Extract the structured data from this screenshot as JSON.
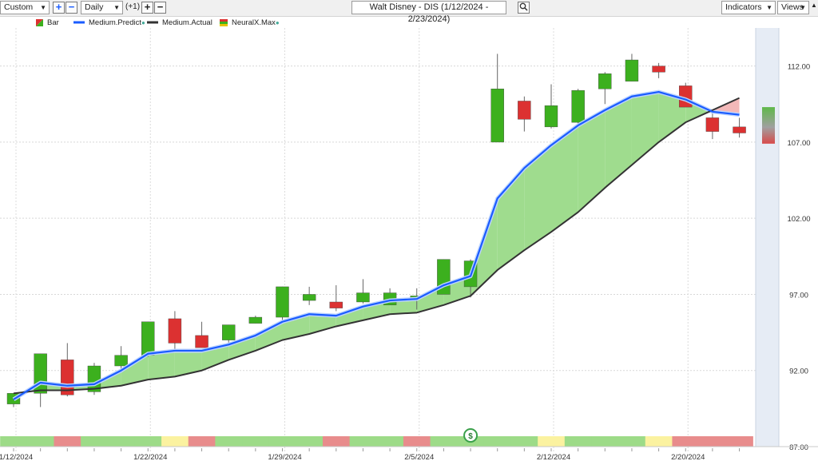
{
  "toolbar": {
    "range_select": "Custom",
    "interval_select": "Daily",
    "offset_label": "(+1)",
    "title": "Walt Disney - DIS (1/12/2024 - 2/23/2024)",
    "indicators_label": "Indicators",
    "views_label": "Views",
    "icons": [
      "plus-icon",
      "minus-icon",
      "search-icon",
      "chevron-down-icon"
    ]
  },
  "legend": {
    "bar": "Bar",
    "predict": "Medium.Predict",
    "actual": "Medium.Actual",
    "neuralx": "NeuralX.Max"
  },
  "colors": {
    "up": "#3cb01e",
    "down": "#dc3131",
    "predict_line": "#1a5cff",
    "actual_line": "#333333",
    "fill_above": "#9fdc8e",
    "fill_below": "#f3b8b8",
    "strip_green": "#9ddb88",
    "strip_red": "#e88c8c",
    "strip_yellow": "#fbf2a0",
    "forecast_band": "#e6ecf5"
  },
  "chart_data": {
    "type": "candlestick",
    "y_ticks": [
      "87.00",
      "92.00",
      "97.00",
      "102.00",
      "107.00",
      "112.00"
    ],
    "ylim": [
      87,
      114.5
    ],
    "x_ticks": [
      {
        "label": "1/12/2024",
        "index": 0
      },
      {
        "label": "1/22/2024",
        "index": 5
      },
      {
        "label": "1/29/2024",
        "index": 10
      },
      {
        "label": "2/5/2024",
        "index": 15
      },
      {
        "label": "2/12/2024",
        "index": 20
      },
      {
        "label": "2/20/2024",
        "index": 25
      }
    ],
    "grid": true,
    "candles": [
      {
        "o": 89.8,
        "h": 90.5,
        "l": 89.6,
        "c": 90.5
      },
      {
        "o": 90.5,
        "h": 93.1,
        "l": 89.6,
        "c": 93.1
      },
      {
        "o": 92.7,
        "h": 93.8,
        "l": 90.3,
        "c": 90.4
      },
      {
        "o": 90.6,
        "h": 92.5,
        "l": 90.4,
        "c": 92.3
      },
      {
        "o": 92.3,
        "h": 93.6,
        "l": 92.1,
        "c": 93.0
      },
      {
        "o": 93.0,
        "h": 95.2,
        "l": 92.9,
        "c": 95.2
      },
      {
        "o": 95.4,
        "h": 95.9,
        "l": 93.4,
        "c": 93.8
      },
      {
        "o": 94.3,
        "h": 95.2,
        "l": 93.5,
        "c": 93.5
      },
      {
        "o": 94.0,
        "h": 95.0,
        "l": 93.8,
        "c": 95.0
      },
      {
        "o": 95.1,
        "h": 95.6,
        "l": 95.1,
        "c": 95.5
      },
      {
        "o": 95.5,
        "h": 97.5,
        "l": 95.1,
        "c": 97.5
      },
      {
        "o": 96.6,
        "h": 97.5,
        "l": 96.3,
        "c": 97.0
      },
      {
        "o": 96.5,
        "h": 97.6,
        "l": 95.9,
        "c": 96.1
      },
      {
        "o": 96.5,
        "h": 98.0,
        "l": 96.4,
        "c": 97.1
      },
      {
        "o": 96.3,
        "h": 97.4,
        "l": 96.3,
        "c": 97.1
      },
      {
        "o": 96.8,
        "h": 97.4,
        "l": 96.0,
        "c": 96.9
      },
      {
        "o": 97.0,
        "h": 99.3,
        "l": 97.0,
        "c": 99.3
      },
      {
        "o": 97.5,
        "h": 99.3,
        "l": 96.8,
        "c": 99.2
      },
      {
        "o": 107.0,
        "h": 112.8,
        "l": 107.0,
        "c": 110.5
      },
      {
        "o": 109.7,
        "h": 110.0,
        "l": 107.7,
        "c": 108.5
      },
      {
        "o": 108.0,
        "h": 110.8,
        "l": 107.9,
        "c": 109.4
      },
      {
        "o": 108.3,
        "h": 110.5,
        "l": 108.0,
        "c": 110.4
      },
      {
        "o": 110.5,
        "h": 111.6,
        "l": 109.5,
        "c": 111.5
      },
      {
        "o": 111.0,
        "h": 112.8,
        "l": 111.0,
        "c": 112.4
      },
      {
        "o": 112.0,
        "h": 112.2,
        "l": 111.2,
        "c": 111.6
      },
      {
        "o": 110.7,
        "h": 110.9,
        "l": 109.3,
        "c": 109.3
      },
      {
        "o": 108.6,
        "h": 108.9,
        "l": 107.2,
        "c": 107.7
      },
      {
        "o": 108.0,
        "h": 108.6,
        "l": 107.3,
        "c": 107.6
      }
    ],
    "series": [
      {
        "name": "Medium.Predict",
        "values": [
          90.1,
          91.2,
          91.0,
          91.1,
          92.0,
          93.1,
          93.3,
          93.3,
          93.7,
          94.3,
          95.2,
          95.7,
          95.6,
          96.2,
          96.6,
          96.7,
          97.6,
          98.2,
          103.3,
          105.3,
          106.8,
          108.1,
          109.1,
          110.0,
          110.3,
          109.8,
          109.0,
          108.8
        ]
      },
      {
        "name": "Medium.Actual",
        "values": [
          90.5,
          90.7,
          90.7,
          90.8,
          91.0,
          91.4,
          91.6,
          92.0,
          92.7,
          93.3,
          94.0,
          94.4,
          94.9,
          95.3,
          95.7,
          95.8,
          96.3,
          96.9,
          98.6,
          99.9,
          101.1,
          102.4,
          104.0,
          105.5,
          107.0,
          108.3,
          109.1,
          109.9
        ]
      }
    ],
    "forecast_candle": {
      "o": 109.3,
      "c": 106.9
    },
    "signal_strip": [
      "green",
      "green",
      "red",
      "green",
      "green",
      "green",
      "yellow",
      "red",
      "green",
      "green",
      "green",
      "green",
      "red",
      "green",
      "green",
      "red",
      "green",
      "green",
      "green",
      "green",
      "yellow",
      "green",
      "green",
      "green",
      "yellow",
      "red",
      "red",
      "red"
    ],
    "signal_marker_index": 17
  }
}
